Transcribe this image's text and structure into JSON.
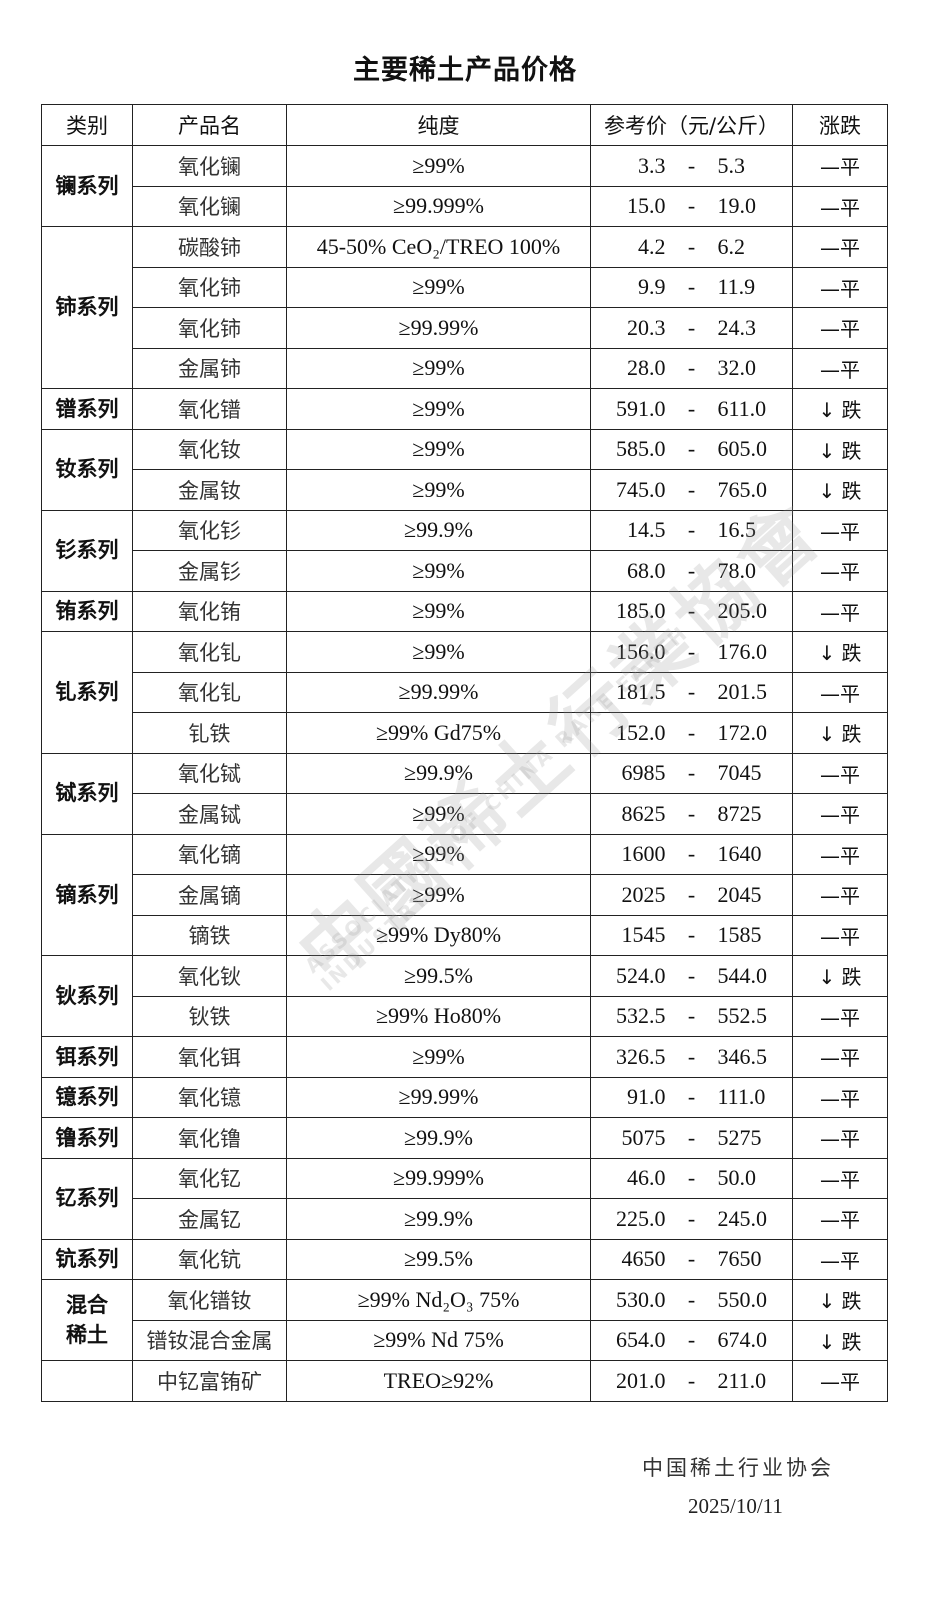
{
  "title": "主要稀土产品价格",
  "headers": {
    "category": "类别",
    "product": "产品名",
    "purity": "纯度",
    "price": "参考价（元/公斤）",
    "trend": "涨跌"
  },
  "groups": [
    {
      "category": "镧系列",
      "rows": [
        {
          "product": "氧化镧",
          "purity": "≥99%",
          "low": "3.3",
          "high": "5.3",
          "trend": "—平"
        },
        {
          "product": "氧化镧",
          "purity": "≥99.999%",
          "low": "15.0",
          "high": "19.0",
          "trend": "—平"
        }
      ]
    },
    {
      "category": "铈系列",
      "rows": [
        {
          "product": "碳酸铈",
          "purity": "45-50% CeO₂/TREO 100%",
          "low": "4.2",
          "high": "6.2",
          "trend": "—平"
        },
        {
          "product": "氧化铈",
          "purity": "≥99%",
          "low": "9.9",
          "high": "11.9",
          "trend": "—平"
        },
        {
          "product": "氧化铈",
          "purity": "≥99.99%",
          "low": "20.3",
          "high": "24.3",
          "trend": "—平"
        },
        {
          "product": "金属铈",
          "purity": "≥99%",
          "low": "28.0",
          "high": "32.0",
          "trend": "—平"
        }
      ]
    },
    {
      "category": "镨系列",
      "rows": [
        {
          "product": "氧化镨",
          "purity": "≥99%",
          "low": "591.0",
          "high": "611.0",
          "trend": "↓ 跌"
        }
      ]
    },
    {
      "category": "钕系列",
      "rows": [
        {
          "product": "氧化钕",
          "purity": "≥99%",
          "low": "585.0",
          "high": "605.0",
          "trend": "↓ 跌"
        },
        {
          "product": "金属钕",
          "purity": "≥99%",
          "low": "745.0",
          "high": "765.0",
          "trend": "↓ 跌"
        }
      ]
    },
    {
      "category": "钐系列",
      "rows": [
        {
          "product": "氧化钐",
          "purity": "≥99.9%",
          "low": "14.5",
          "high": "16.5",
          "trend": "—平"
        },
        {
          "product": "金属钐",
          "purity": "≥99%",
          "low": "68.0",
          "high": "78.0",
          "trend": "—平"
        }
      ]
    },
    {
      "category": "铕系列",
      "rows": [
        {
          "product": "氧化铕",
          "purity": "≥99%",
          "low": "185.0",
          "high": "205.0",
          "trend": "—平"
        }
      ]
    },
    {
      "category": "钆系列",
      "rows": [
        {
          "product": "氧化钆",
          "purity": "≥99%",
          "low": "156.0",
          "high": "176.0",
          "trend": "↓ 跌"
        },
        {
          "product": "氧化钆",
          "purity": "≥99.99%",
          "low": "181.5",
          "high": "201.5",
          "trend": "—平"
        },
        {
          "product": "钆铁",
          "purity": "≥99% Gd75%",
          "low": "152.0",
          "high": "172.0",
          "trend": "↓ 跌"
        }
      ]
    },
    {
      "category": "铽系列",
      "rows": [
        {
          "product": "氧化铽",
          "purity": "≥99.9%",
          "low": "6985",
          "high": "7045",
          "trend": "—平"
        },
        {
          "product": "金属铽",
          "purity": "≥99%",
          "low": "8625",
          "high": "8725",
          "trend": "—平"
        }
      ]
    },
    {
      "category": "镝系列",
      "rows": [
        {
          "product": "氧化镝",
          "purity": "≥99%",
          "low": "1600",
          "high": "1640",
          "trend": "—平"
        },
        {
          "product": "金属镝",
          "purity": "≥99%",
          "low": "2025",
          "high": "2045",
          "trend": "—平"
        },
        {
          "product": "镝铁",
          "purity": "≥99% Dy80%",
          "low": "1545",
          "high": "1585",
          "trend": "—平"
        }
      ]
    },
    {
      "category": "钬系列",
      "rows": [
        {
          "product": "氧化钬",
          "purity": "≥99.5%",
          "low": "524.0",
          "high": "544.0",
          "trend": "↓ 跌"
        },
        {
          "product": "钬铁",
          "purity": "≥99% Ho80%",
          "low": "532.5",
          "high": "552.5",
          "trend": "—平"
        }
      ]
    },
    {
      "category": "铒系列",
      "rows": [
        {
          "product": "氧化铒",
          "purity": "≥99%",
          "low": "326.5",
          "high": "346.5",
          "trend": "—平"
        }
      ]
    },
    {
      "category": "镱系列",
      "rows": [
        {
          "product": "氧化镱",
          "purity": "≥99.99%",
          "low": "91.0",
          "high": "111.0",
          "trend": "—平"
        }
      ]
    },
    {
      "category": "镥系列",
      "rows": [
        {
          "product": "氧化镥",
          "purity": "≥99.9%",
          "low": "5075",
          "high": "5275",
          "trend": "—平"
        }
      ]
    },
    {
      "category": "钇系列",
      "rows": [
        {
          "product": "氧化钇",
          "purity": "≥99.999%",
          "low": "46.0",
          "high": "50.0",
          "trend": "—平"
        },
        {
          "product": "金属钇",
          "purity": "≥99.9%",
          "low": "225.0",
          "high": "245.0",
          "trend": "—平"
        }
      ]
    },
    {
      "category": "钪系列",
      "rows": [
        {
          "product": "氧化钪",
          "purity": "≥99.5%",
          "low": "4650",
          "high": "7650",
          "trend": "—平"
        }
      ]
    },
    {
      "category": "混合稀土",
      "rows": [
        {
          "product": "氧化镨钕",
          "purity": "≥99%  Nd₂O₃  75%",
          "low": "530.0",
          "high": "550.0",
          "trend": "↓ 跌"
        },
        {
          "product": "镨钕混合金属",
          "purity": "≥99% Nd 75%",
          "low": "654.0",
          "high": "674.0",
          "trend": "↓ 跌"
        }
      ]
    },
    {
      "category": "",
      "rows": [
        {
          "product": "中钇富铕矿",
          "purity": "TREO≥92%",
          "low": "201.0",
          "high": "211.0",
          "trend": "—平"
        }
      ]
    }
  ],
  "price_separator": "-",
  "footer": {
    "organization": "中国稀土行业协会",
    "date": "2025/10/11"
  },
  "watermark": {
    "cn": "中國稀土行業協會",
    "en": "ASSOCIATION OF CHINA RARE EARTH INDUSTRY",
    "logo": "ACREI"
  }
}
